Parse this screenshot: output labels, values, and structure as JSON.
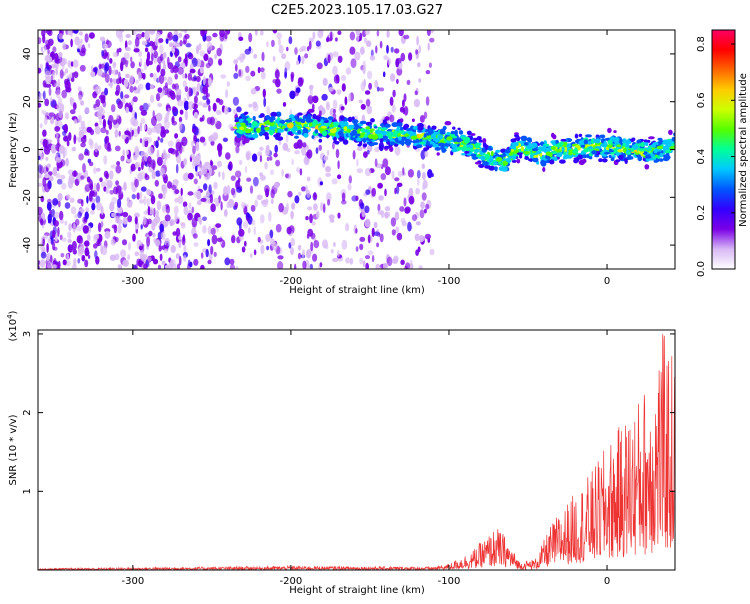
{
  "title": "C2E5.2023.105.17.03.G27",
  "chart_data": [
    {
      "type": "heatmap",
      "xlabel": "Height of straight line (km)",
      "ylabel": "Frequency (Hz)",
      "xlim": [
        -360,
        43
      ],
      "ylim": [
        -50,
        50
      ],
      "x_ticks": [
        -300,
        -200,
        -100,
        0
      ],
      "x_tick_labels": [
        "-300",
        "-200",
        "-100",
        "0"
      ],
      "y_ticks": [
        -40,
        -20,
        0,
        20,
        40
      ],
      "y_tick_labels": [
        "-40",
        "-20",
        "0",
        "20",
        "40"
      ],
      "ridge": {
        "x": [
          -235,
          -210,
          -190,
          -170,
          -150,
          -130,
          -110,
          -95,
          -85,
          -75,
          -65,
          -55,
          -45,
          -30,
          -15,
          0,
          15,
          30,
          43
        ],
        "freq": [
          9,
          10,
          10,
          8,
          7,
          6,
          5,
          3,
          1,
          -3,
          -5,
          2,
          -2,
          0,
          1,
          1,
          0,
          -1,
          2
        ]
      },
      "noise_region_x": [
        -360,
        -110
      ],
      "colorbar": {
        "label": "Normalized spectral amplitude",
        "range": [
          0,
          0.85
        ],
        "ticks": [
          0.0,
          0.2,
          0.4,
          0.6,
          0.8
        ],
        "tick_labels": [
          "0.0",
          "0.2",
          "0.4",
          "0.6",
          "0.8"
        ],
        "colors": [
          "#ffffff",
          "#d8b8f5",
          "#7a00e6",
          "#3300ff",
          "#0055ff",
          "#00c8ff",
          "#00ff99",
          "#55ff00",
          "#ccff00",
          "#ffcc00",
          "#ff6600",
          "#ff0000",
          "#ff0066"
        ]
      }
    },
    {
      "type": "line",
      "xlabel": "Height of straight line (km)",
      "ylabel": "SNR (10 * v/v)",
      "multiplier": "(x10",
      "multiplier_exp": "4",
      "multiplier_close": ")",
      "xlim": [
        -360,
        43
      ],
      "ylim": [
        0,
        3.05
      ],
      "x_ticks": [
        -300,
        -200,
        -100,
        0
      ],
      "x_tick_labels": [
        "-300",
        "-200",
        "-100",
        "0"
      ],
      "y_ticks": [
        1,
        2,
        3
      ],
      "y_tick_labels": [
        "1",
        "2",
        "3"
      ],
      "color": "#ee3333",
      "envelope": {
        "x": [
          -360,
          -200,
          -110,
          -100,
          -85,
          -75,
          -70,
          -65,
          -55,
          -45,
          -35,
          -20,
          -10,
          0,
          10,
          20,
          30,
          35,
          43
        ],
        "peak": [
          0.02,
          0.05,
          0.04,
          0.08,
          0.25,
          0.45,
          0.55,
          0.45,
          0.1,
          0.15,
          0.6,
          1.0,
          1.25,
          1.6,
          1.9,
          2.2,
          2.6,
          3.05,
          2.7
        ]
      }
    }
  ]
}
